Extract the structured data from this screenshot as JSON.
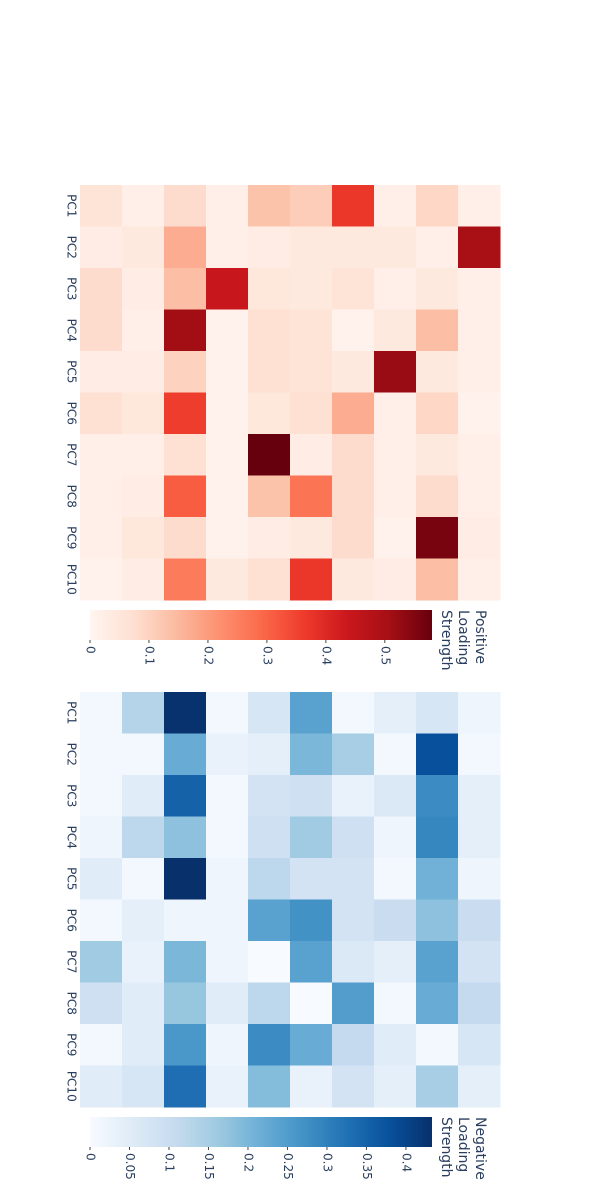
{
  "chart_data": [
    {
      "type": "heatmap",
      "rows": [
        "PC1",
        "PC2",
        "PC3",
        "PC4",
        "PC5",
        "PC6",
        "PC7",
        "PC8",
        "PC9",
        "PC10"
      ],
      "values": [
        [
          0.06,
          0.02,
          0.08,
          0.02,
          0.13,
          0.11,
          0.37,
          0.02,
          0.09,
          0.02
        ],
        [
          0.03,
          0.04,
          0.17,
          0.02,
          0.03,
          0.04,
          0.04,
          0.04,
          0.02,
          0.5
        ],
        [
          0.08,
          0.03,
          0.14,
          0.44,
          0.05,
          0.04,
          0.06,
          0.02,
          0.04,
          0.02
        ],
        [
          0.08,
          0.02,
          0.51,
          0.01,
          0.07,
          0.06,
          0.01,
          0.04,
          0.14,
          0.02
        ],
        [
          0.03,
          0.03,
          0.1,
          0.01,
          0.07,
          0.06,
          0.04,
          0.52,
          0.04,
          0.02
        ],
        [
          0.07,
          0.05,
          0.36,
          0.01,
          0.05,
          0.07,
          0.17,
          0.02,
          0.09,
          0.01
        ],
        [
          0.02,
          0.02,
          0.07,
          0.01,
          0.58,
          0.03,
          0.08,
          0.02,
          0.04,
          0.02
        ],
        [
          0.02,
          0.03,
          0.31,
          0.01,
          0.13,
          0.27,
          0.08,
          0.02,
          0.08,
          0.02
        ],
        [
          0.02,
          0.05,
          0.08,
          0.01,
          0.03,
          0.04,
          0.08,
          0.01,
          0.56,
          0.03
        ],
        [
          0.01,
          0.03,
          0.26,
          0.04,
          0.07,
          0.37,
          0.04,
          0.03,
          0.14,
          0.02
        ]
      ],
      "zlim": [
        0,
        0.58
      ],
      "colorscale": [
        "#fff5f0",
        "#fee0d2",
        "#fcbba1",
        "#fc9272",
        "#fb6a4a",
        "#ef3b2c",
        "#cb181d",
        "#a50f15",
        "#67000d"
      ],
      "colorbar_title": [
        "Positive",
        "Loading",
        "Strength"
      ],
      "colorbar_ticks": [
        0,
        0.1,
        0.2,
        0.3,
        0.4,
        0.5
      ]
    },
    {
      "type": "heatmap",
      "rows": [
        "PC1",
        "PC2",
        "PC3",
        "PC4",
        "PC5",
        "PC6",
        "PC7",
        "PC8",
        "PC9",
        "PC10"
      ],
      "values": [
        [
          0.01,
          0.13,
          0.43,
          0.01,
          0.07,
          0.24,
          0.01,
          0.04,
          0.07,
          0.02
        ],
        [
          0.01,
          0.01,
          0.22,
          0.03,
          0.04,
          0.2,
          0.15,
          0.01,
          0.38,
          0.01
        ],
        [
          0.01,
          0.05,
          0.35,
          0.01,
          0.08,
          0.09,
          0.03,
          0.06,
          0.28,
          0.04
        ],
        [
          0.02,
          0.12,
          0.18,
          0.01,
          0.09,
          0.16,
          0.09,
          0.02,
          0.29,
          0.04
        ],
        [
          0.05,
          0.01,
          0.44,
          0.02,
          0.12,
          0.08,
          0.08,
          0.01,
          0.21,
          0.02
        ],
        [
          0.01,
          0.04,
          0.02,
          0.02,
          0.24,
          0.27,
          0.08,
          0.1,
          0.18,
          0.1
        ],
        [
          0.16,
          0.03,
          0.2,
          0.02,
          0.0,
          0.24,
          0.06,
          0.04,
          0.24,
          0.08
        ],
        [
          0.09,
          0.05,
          0.17,
          0.05,
          0.12,
          0.0,
          0.25,
          0.01,
          0.22,
          0.11
        ],
        [
          0.01,
          0.05,
          0.26,
          0.02,
          0.28,
          0.22,
          0.11,
          0.05,
          0.01,
          0.07
        ],
        [
          0.05,
          0.07,
          0.33,
          0.03,
          0.19,
          0.03,
          0.08,
          0.04,
          0.15,
          0.04
        ]
      ],
      "zlim": [
        0,
        0.433
      ],
      "colorscale": [
        "#f7fbff",
        "#deebf7",
        "#c6dbef",
        "#9ecae1",
        "#6baed6",
        "#4292c6",
        "#2171b5",
        "#08519c",
        "#08306b"
      ],
      "colorbar_title": [
        "Negative",
        "Loading",
        "Strength"
      ],
      "colorbar_ticks": [
        0,
        0.05,
        0.1,
        0.15,
        0.2,
        0.25,
        0.3,
        0.35,
        0.4
      ]
    }
  ]
}
